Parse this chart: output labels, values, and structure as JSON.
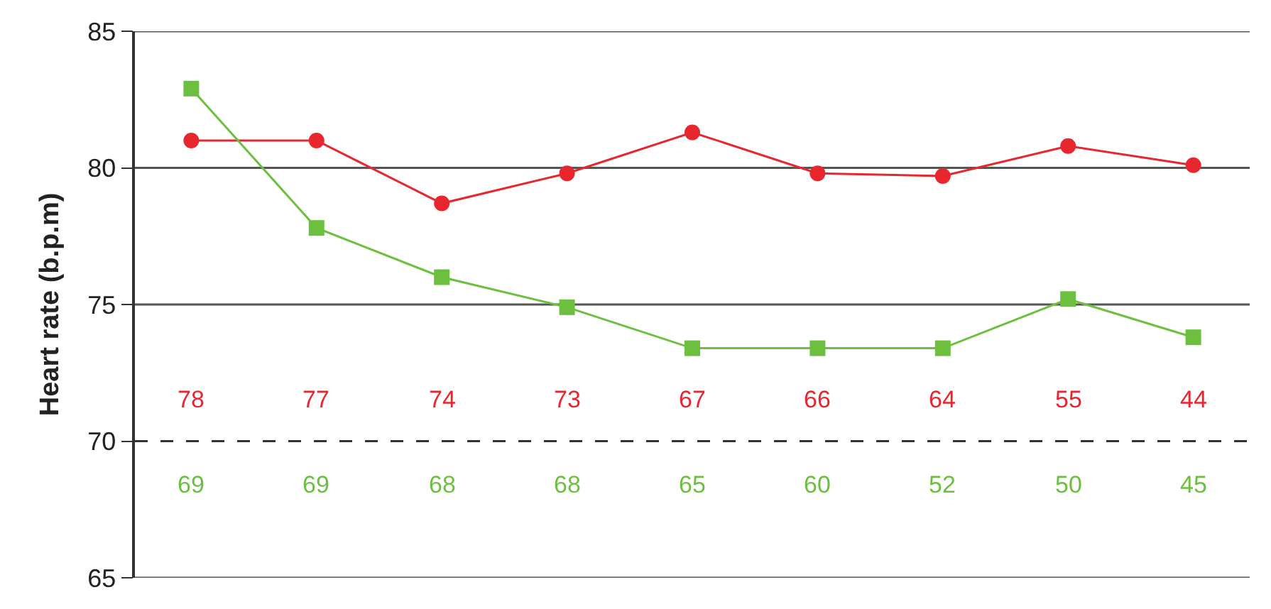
{
  "chart_data": {
    "type": "line",
    "ylabel": "Heart rate (b.p.m)",
    "categories": [
      null,
      null,
      null,
      null,
      null,
      null,
      null,
      null,
      null
    ],
    "series": [
      {
        "color": "#e8262d",
        "marker": "circle",
        "values": [
          81.0,
          81.0,
          78.7,
          79.8,
          81.3,
          79.8,
          79.7,
          80.8,
          80.1
        ]
      },
      {
        "color": "#6cbf3f",
        "marker": "square",
        "values": [
          82.9,
          77.8,
          76.0,
          74.9,
          73.4,
          73.4,
          73.4,
          75.2,
          73.8
        ]
      }
    ],
    "ylim": [
      65,
      85
    ],
    "yticks": [
      65,
      70,
      75,
      80,
      85
    ],
    "grid": "y",
    "legend": false,
    "line_style": "solid",
    "tick_labels": "y",
    "ref_lines": [
      {
        "axis": "y",
        "value": 70,
        "line_style": "dashed",
        "color": "#333333"
      }
    ],
    "annotations": [
      "78",
      "77",
      "74",
      "73",
      "67",
      "66",
      "64",
      "55",
      "44",
      "69",
      "69",
      "68",
      "68",
      "65",
      "60",
      "52",
      "50",
      "45"
    ]
  }
}
